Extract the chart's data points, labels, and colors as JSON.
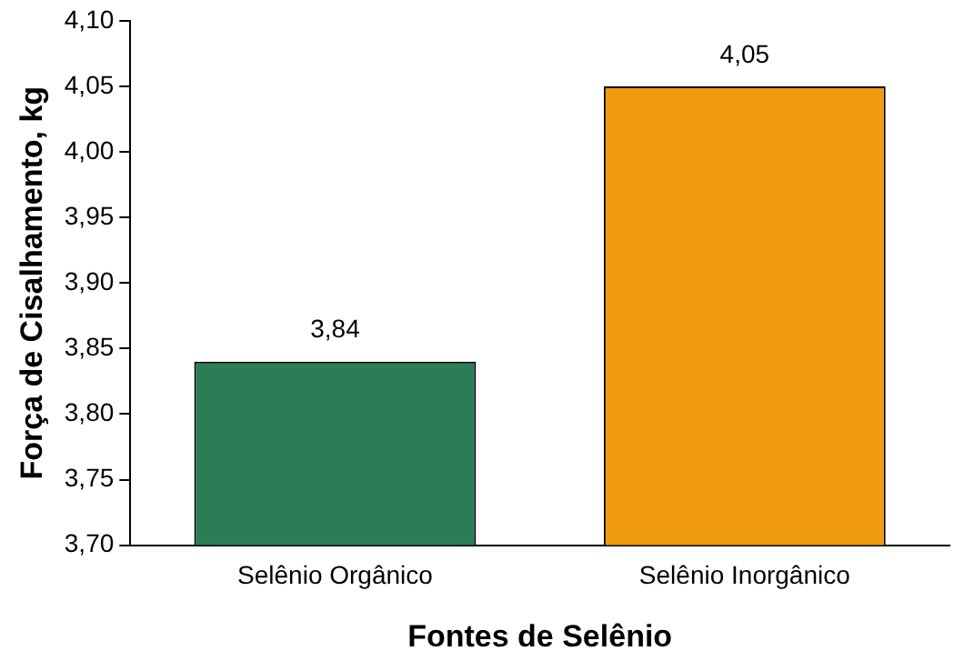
{
  "chart_data": {
    "type": "bar",
    "xlabel": "Fontes de Selênio",
    "ylabel": "Força de Cisalhamento, kg",
    "categories": [
      "Selênio Orgânico",
      "Selênio Inorgânico"
    ],
    "values": [
      3.84,
      4.05
    ],
    "colors": [
      "#2a7d55",
      "#f09a10"
    ],
    "value_labels": [
      "3,84",
      "4,05"
    ],
    "ylim": [
      3.7,
      4.1
    ],
    "yticks": [
      {
        "value": 3.7,
        "label": "3,70"
      },
      {
        "value": 3.75,
        "label": "3,75"
      },
      {
        "value": 3.8,
        "label": "3,80"
      },
      {
        "value": 3.85,
        "label": "3,85"
      },
      {
        "value": 3.9,
        "label": "3,90"
      },
      {
        "value": 3.95,
        "label": "3,95"
      },
      {
        "value": 4.0,
        "label": "4,00"
      },
      {
        "value": 4.05,
        "label": "4,05"
      },
      {
        "value": 4.1,
        "label": "4,10"
      }
    ],
    "grid": false,
    "legend": false
  }
}
